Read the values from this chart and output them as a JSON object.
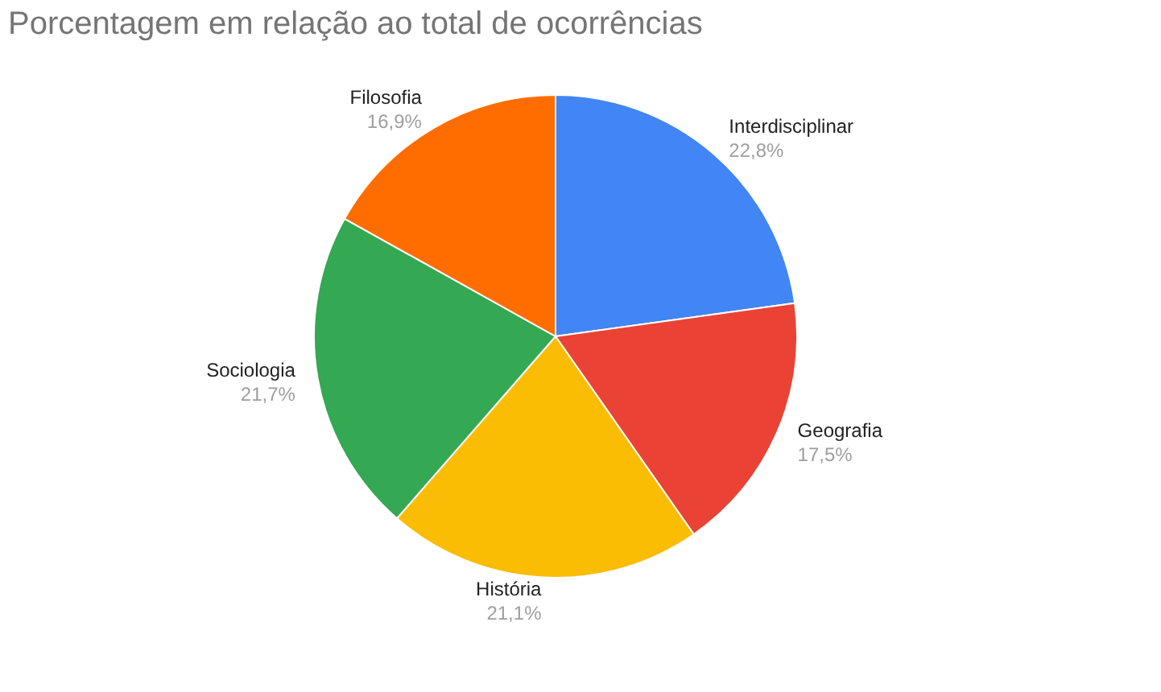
{
  "chart_data": {
    "type": "pie",
    "title": "Porcentagem em relação ao total de ocorrências",
    "categories": [
      "Interdisciplinar",
      "Geografia",
      "História",
      "Sociologia",
      "Filosofia"
    ],
    "values": [
      22.8,
      17.5,
      21.1,
      21.7,
      16.9
    ],
    "colors": [
      "#4285f4",
      "#ea4335",
      "#fbbc04",
      "#34a853",
      "#ff6d01"
    ],
    "value_labels": [
      "22,8%",
      "17,5%",
      "21,1%",
      "21,7%",
      "16,9%"
    ],
    "legend": false
  }
}
